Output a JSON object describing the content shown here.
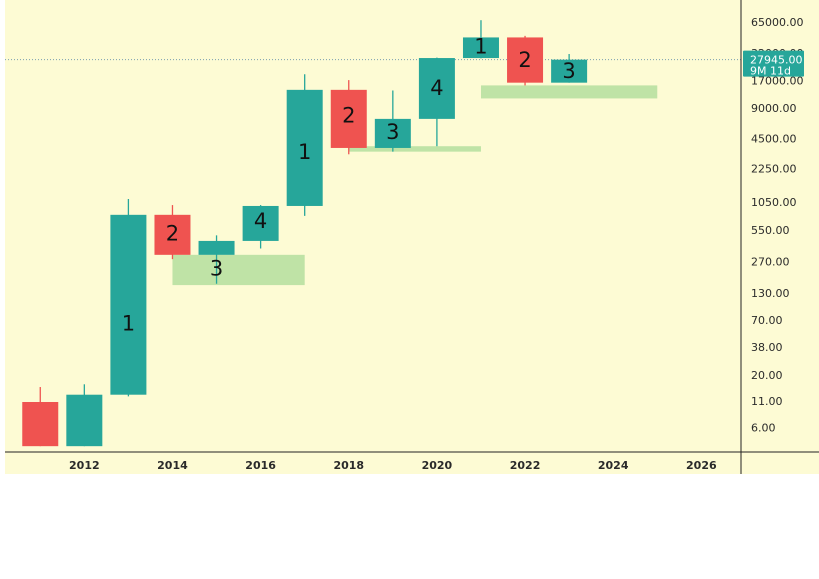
{
  "colors": {
    "background": "#fdfbd4",
    "up": "#26a69a",
    "down": "#ef5350",
    "zone": "#bfe3a6",
    "axis": "#222222",
    "price_line": "#7a9fb0"
  },
  "chart_data": {
    "type": "candlestick",
    "scale": "log",
    "ylim": [
      3.5,
      100000
    ],
    "xlim": [
      2010.2,
      2026.9
    ],
    "y_ticks": [
      "65000.00",
      "32000.00",
      "17000.00",
      "9000.00",
      "4500.00",
      "2250.00",
      "1050.00",
      "550.00",
      "270.00",
      "130.00",
      "70.00",
      "38.00",
      "20.00",
      "11.00",
      "6.00"
    ],
    "x_ticks": [
      "2012",
      "2014",
      "2016",
      "2018",
      "2020",
      "2022",
      "2024",
      "2026"
    ],
    "candles": [
      {
        "year": 2011,
        "open": 11,
        "close": 4.0,
        "high": 15.5,
        "low": 4.0
      },
      {
        "year": 2012,
        "open": 4.0,
        "close": 13,
        "high": 16.5,
        "low": 4.0
      },
      {
        "year": 2013,
        "open": 13,
        "close": 800,
        "high": 1150,
        "low": 12.5
      },
      {
        "year": 2014,
        "open": 800,
        "close": 320,
        "high": 1000,
        "low": 290
      },
      {
        "year": 2015,
        "open": 320,
        "close": 440,
        "high": 500,
        "low": 165
      },
      {
        "year": 2016,
        "open": 440,
        "close": 980,
        "high": 1000,
        "low": 370
      },
      {
        "year": 2017,
        "open": 980,
        "close": 14000,
        "high": 20000,
        "low": 780
      },
      {
        "year": 2018,
        "open": 14000,
        "close": 3700,
        "high": 17500,
        "low": 3200
      },
      {
        "year": 2019,
        "open": 3700,
        "close": 7200,
        "high": 13800,
        "low": 3400
      },
      {
        "year": 2020,
        "open": 7200,
        "close": 29000,
        "high": 29300,
        "low": 3850
      },
      {
        "year": 2021,
        "open": 29000,
        "close": 46500,
        "high": 69000,
        "low": 28800
      },
      {
        "year": 2022,
        "open": 46500,
        "close": 16500,
        "high": 48200,
        "low": 15500
      },
      {
        "year": 2023,
        "open": 16500,
        "close": 27945,
        "high": 31800,
        "low": 16500
      }
    ],
    "zones": [
      {
        "x0": 2014.0,
        "x1": 2017.0,
        "y_low": 160,
        "y_high": 320
      },
      {
        "x0": 2018.0,
        "x1": 2021.0,
        "y_low": 3400,
        "y_high": 3850
      },
      {
        "x0": 2021.0,
        "x1": 2025.0,
        "y_low": 11500,
        "y_high": 15500
      }
    ],
    "wave_labels": [
      {
        "text": "1",
        "year": 2013,
        "price": 65
      },
      {
        "text": "2",
        "year": 2014,
        "price": 510
      },
      {
        "text": "3",
        "year": 2015,
        "price": 230
      },
      {
        "text": "4",
        "year": 2016,
        "price": 680
      },
      {
        "text": "1",
        "year": 2017,
        "price": 3300
      },
      {
        "text": "2",
        "year": 2018,
        "price": 7600
      },
      {
        "text": "3",
        "year": 2019,
        "price": 5200
      },
      {
        "text": "4",
        "year": 2020,
        "price": 14300
      },
      {
        "text": "1",
        "year": 2021,
        "price": 37000
      },
      {
        "text": "2",
        "year": 2022,
        "price": 27000
      },
      {
        "text": "3",
        "year": 2023,
        "price": 21000
      }
    ],
    "last_price": {
      "value": 27945,
      "price_label": "27945.00",
      "countdown_label": "9M 11d"
    }
  }
}
